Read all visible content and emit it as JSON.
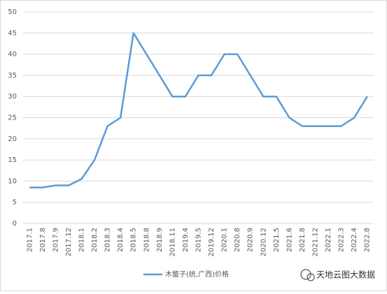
{
  "chart_data": {
    "type": "line",
    "categories": [
      "2017.1",
      "2017.8",
      "2017.9",
      "2017.12",
      "2018.1",
      "2018.2",
      "2018.3",
      "2018.4",
      "2018.5",
      "2018.8",
      "2018.9",
      "2018.11",
      "2019.4",
      "2019.5",
      "2019.12",
      "2020.1",
      "2020.8",
      "2020.9",
      "2020.12",
      "2021.5",
      "2021.6",
      "2021.8",
      "2021.12",
      "2022.1",
      "2022.3",
      "2022.4",
      "2022.8"
    ],
    "series": [
      {
        "name": "木鳖子(统,广西)价格",
        "color": "#5b9bd5",
        "values": [
          8.5,
          8.5,
          9,
          9,
          10.5,
          15,
          23,
          25,
          45,
          40,
          35,
          30,
          30,
          35,
          35,
          40,
          40,
          35,
          30,
          30,
          25,
          23,
          23,
          23,
          23,
          25,
          30
        ]
      }
    ],
    "ylim": [
      0,
      50
    ],
    "yticks": [
      0,
      5,
      10,
      15,
      20,
      25,
      30,
      35,
      40,
      45,
      50
    ],
    "grid": true,
    "legend": "bottom"
  },
  "watermark": "天地云图大数据"
}
